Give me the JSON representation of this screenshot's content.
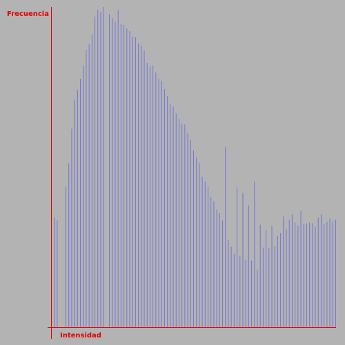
{
  "chart_data": {
    "type": "bar",
    "ylabel": "Frecuencia",
    "xlabel": "Intensidad",
    "bar_color": "#7373d9",
    "axis_color": "#e00000",
    "background": "#b3b3b3",
    "ylim": [
      0,
      462
    ],
    "values": [
      120,
      158,
      154,
      0,
      0,
      203,
      237,
      287,
      329,
      343,
      359,
      378,
      401,
      409,
      423,
      449,
      459,
      456,
      463,
      0,
      452,
      447,
      442,
      458,
      438,
      437,
      432,
      428,
      420,
      419,
      410,
      407,
      400,
      382,
      377,
      378,
      368,
      359,
      356,
      344,
      334,
      322,
      319,
      309,
      301,
      294,
      293,
      281,
      271,
      255,
      245,
      237,
      217,
      210,
      203,
      188,
      182,
      170,
      165,
      154,
      260,
      126,
      116,
      106,
      202,
      103,
      194,
      97,
      176,
      96,
      210,
      83,
      148,
      115,
      140,
      114,
      146,
      117,
      132,
      136,
      160,
      142,
      155,
      163,
      151,
      147,
      168,
      149,
      150,
      151,
      150,
      145,
      158,
      163,
      149,
      152,
      157,
      153,
      155
    ]
  }
}
